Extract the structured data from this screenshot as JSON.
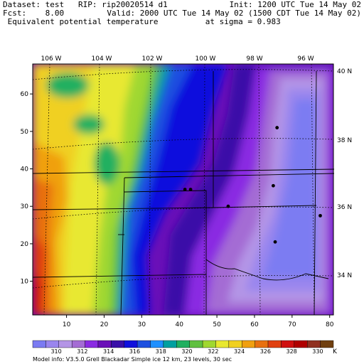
{
  "header": {
    "line1_left": "Dataset: test   RIP: rip20020514 d1",
    "line1_right": "Init: 1200 UTC Tue 14 May 02",
    "line2_left": "Fcst:    8.00",
    "line2_right": "Valid: 2000 UTC Tue 14 May 02 (1500 CDT Tue 14 May 02)",
    "line3": " Equivalent potential temperature          at sigma = 0.983"
  },
  "footer": {
    "model_info": "Model info: V3.5.0  Grell      Blackadar  Simple ice    12 km,  23 levels,   30 sec"
  },
  "chart_data": {
    "type": "heatmap",
    "title": "Equivalent potential temperature",
    "x_ticks": [
      10,
      20,
      30,
      40,
      50,
      60,
      70,
      80
    ],
    "y_ticks": [
      10,
      20,
      30,
      40,
      50,
      60
    ],
    "xlim": [
      1,
      81
    ],
    "ylim": [
      1,
      68
    ],
    "longitude_labels": [
      "106 W",
      "104 W",
      "102 W",
      "100 W",
      "98 W",
      "96 W"
    ],
    "latitude_labels": [
      "40 N",
      "38 N",
      "36 N",
      "34 N"
    ],
    "colorbar": {
      "labels": [
        "310",
        "312",
        "314",
        "316",
        "318",
        "320",
        "322",
        "324",
        "326",
        "328",
        "330"
      ],
      "unit": "K",
      "colors": [
        "#7b7bf2",
        "#9a86ee",
        "#b495e6",
        "#a46cd4",
        "#8a2be2",
        "#6a0fb8",
        "#3a0fa8",
        "#1010dd",
        "#1e50e0",
        "#1e90ff",
        "#00a0a0",
        "#20b060",
        "#60c040",
        "#a0d830",
        "#e8e830",
        "#f0d020",
        "#f0a010",
        "#e87010",
        "#e04010",
        "#d01010",
        "#b00000",
        "#903020",
        "#704010"
      ]
    },
    "stations": [
      {
        "x": 66,
        "y": 51
      },
      {
        "x": 65,
        "y": 35.5
      },
      {
        "x": 53,
        "y": 30
      },
      {
        "x": 41.5,
        "y": 34.5
      },
      {
        "x": 43,
        "y": 34.5
      },
      {
        "x": 65.5,
        "y": 20.5
      },
      {
        "x": 77.5,
        "y": 27.5
      }
    ]
  }
}
